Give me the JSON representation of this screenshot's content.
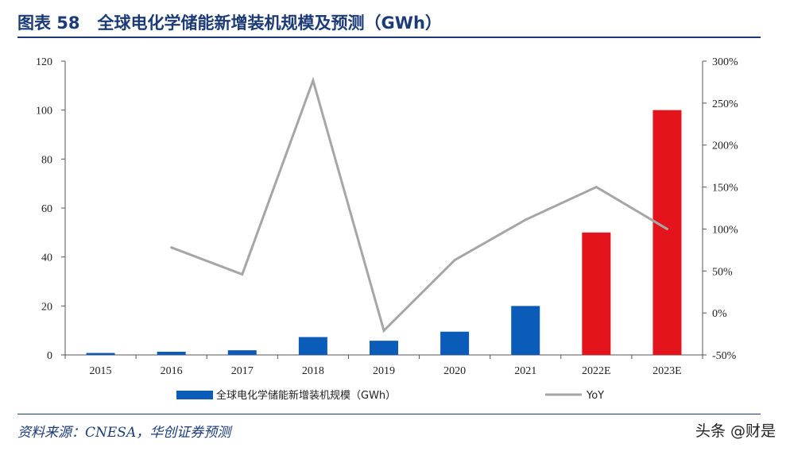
{
  "header": {
    "figure_label": "图表 58",
    "title": "全球电化学储能新增装机规模及预测（GWh）"
  },
  "chart_data": {
    "type": "bar+line",
    "categories": [
      "2015",
      "2016",
      "2017",
      "2018",
      "2019",
      "2020",
      "2021",
      "2022E",
      "2023E"
    ],
    "series": [
      {
        "name": "全球电化学储能新增装机规模（GWh）",
        "type": "bar",
        "axis": "left",
        "values": [
          0.8,
          1.3,
          1.9,
          7.3,
          5.8,
          9.5,
          20,
          50,
          100
        ]
      },
      {
        "name": "YoY",
        "type": "line",
        "axis": "right",
        "values": [
          null,
          78,
          46,
          277,
          -21,
          63,
          111,
          150,
          100
        ]
      }
    ],
    "forecast_categories": [
      "2022E",
      "2023E"
    ],
    "left_axis": {
      "min": 0,
      "max": 120,
      "ticks": [
        "0",
        "20",
        "40",
        "60",
        "80",
        "100",
        "120"
      ]
    },
    "right_axis": {
      "min": -50,
      "max": 300,
      "ticks": [
        "-50%",
        "0%",
        "50%",
        "100%",
        "150%",
        "200%",
        "250%",
        "300%"
      ]
    },
    "legend_position": "bottom",
    "colors": {
      "bar_actual": "#0b5cb8",
      "bar_forecast": "#e3141b",
      "line": "#a6a6a6",
      "axis": "#555555"
    }
  },
  "footer": {
    "source": "资料来源：CNESA，华创证券预测",
    "watermark": "头条 @财是"
  }
}
